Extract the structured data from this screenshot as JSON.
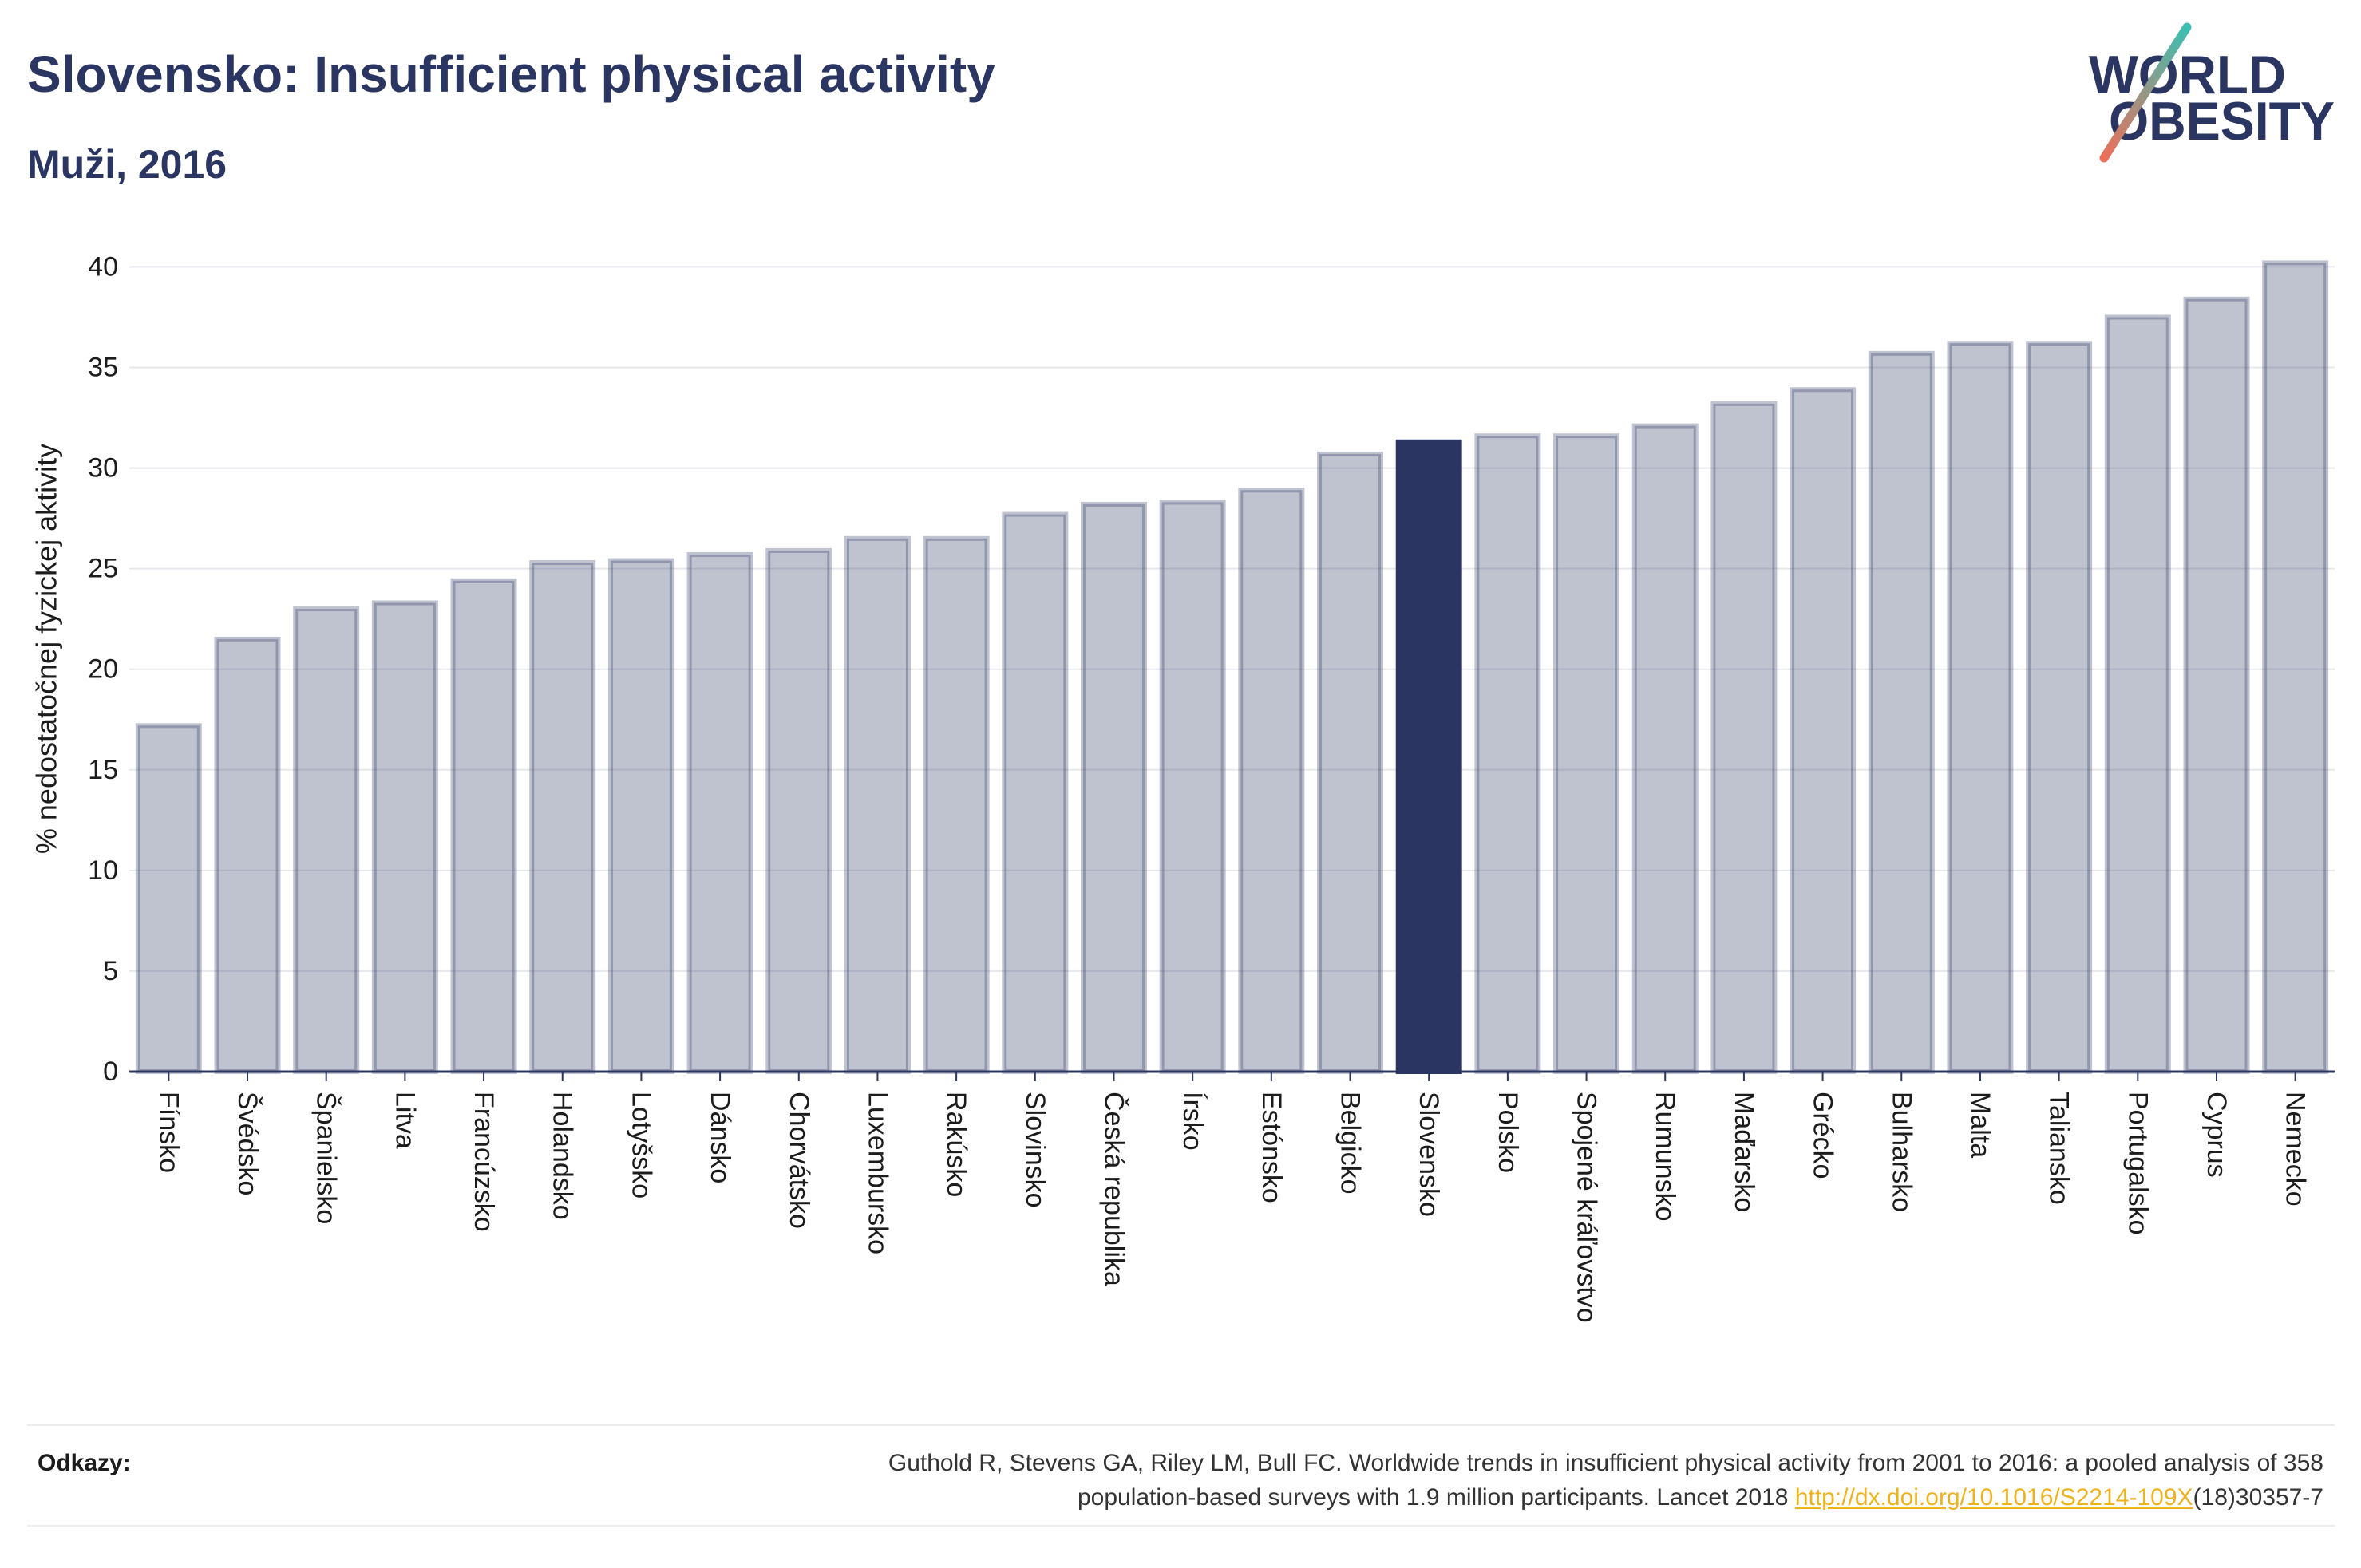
{
  "logo": {
    "line1": "WORLD",
    "line2": "OBESITY",
    "text_color": "#2a3561",
    "slash_top_color": "#3dbfb1",
    "slash_bottom_color": "#ec6f5a"
  },
  "chart_data": {
    "type": "bar",
    "title": "Slovensko: Insufficient physical activity",
    "subtitle": "Muži, 2016",
    "ylabel": "% nedostatočnej fyzickej aktivity",
    "ylim": [
      0,
      42
    ],
    "yticks": [
      0,
      5,
      10,
      15,
      20,
      25,
      30,
      35,
      40
    ],
    "grid": true,
    "categories": [
      "Fínsko",
      "Švédsko",
      "Španielsko",
      "Litva",
      "Francúzsko",
      "Holandsko",
      "Lotyšsko",
      "Dánsko",
      "Chorvátsko",
      "Luxembursko",
      "Rakúsko",
      "Slovinsko",
      "Česká republika",
      "Írsko",
      "Estónsko",
      "Belgicko",
      "Slovensko",
      "Polsko",
      "Spojené kráľovstvo",
      "Rumunsko",
      "Maďarsko",
      "Grécko",
      "Bulharsko",
      "Malta",
      "Taliansko",
      "Portugalsko",
      "Cyprus",
      "Nemecko"
    ],
    "values": [
      17.2,
      21.5,
      23.0,
      23.3,
      24.4,
      25.3,
      25.4,
      25.7,
      25.9,
      26.5,
      26.5,
      27.7,
      28.2,
      28.3,
      28.9,
      30.7,
      31.3,
      31.6,
      31.6,
      32.1,
      33.2,
      33.9,
      35.7,
      36.2,
      36.2,
      37.5,
      38.4,
      40.2
    ],
    "highlight_index": 16,
    "colors": {
      "bar": "#2a3561",
      "bar_opacity": 0.3,
      "highlight": "#2a3561",
      "grid": "#e7e8ec",
      "axis": "#2a3561"
    }
  },
  "footer": {
    "label": "Odkazy:",
    "reference_line1": "Guthold R, Stevens GA, Riley LM, Bull FC. Worldwide trends in insufficient physical activity from 2001 to 2016: a pooled analysis of 358",
    "reference_line2": "population-based surveys with 1.9 million participants. Lancet 2018",
    "link_text": "http://dx.doi.org/10.1016/S2214-109X",
    "link_suffix": "(18)30357-7"
  }
}
